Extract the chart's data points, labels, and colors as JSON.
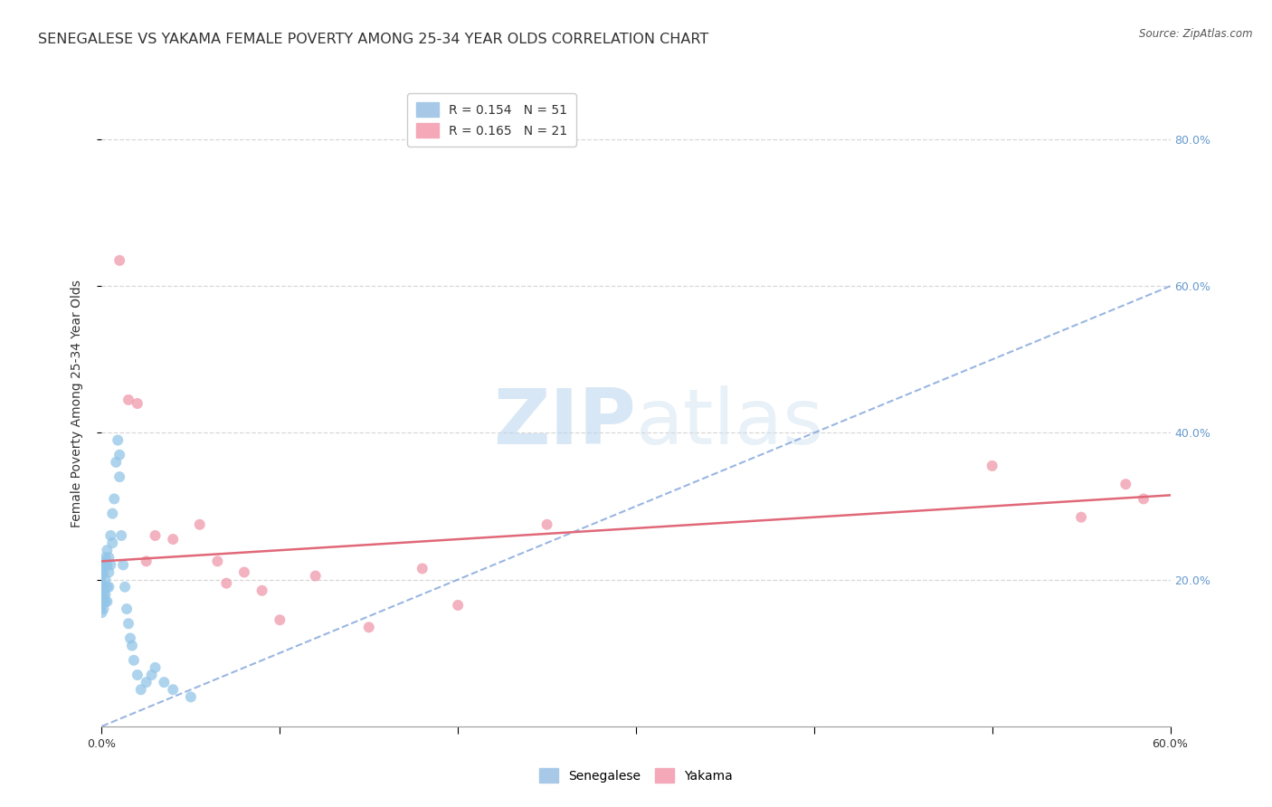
{
  "title": "SENEGALESE VS YAKAMA FEMALE POVERTY AMONG 25-34 YEAR OLDS CORRELATION CHART",
  "source": "Source: ZipAtlas.com",
  "ylabel": "Female Poverty Among 25-34 Year Olds",
  "xlim": [
    0.0,
    0.6
  ],
  "ylim": [
    0.0,
    0.88
  ],
  "watermark_zip": "ZIP",
  "watermark_atlas": "atlas",
  "senegalese_x": [
    0.0,
    0.0,
    0.0,
    0.0,
    0.0,
    0.0,
    0.0,
    0.0,
    0.001,
    0.001,
    0.001,
    0.001,
    0.001,
    0.001,
    0.002,
    0.002,
    0.002,
    0.002,
    0.002,
    0.003,
    0.003,
    0.003,
    0.003,
    0.004,
    0.004,
    0.004,
    0.005,
    0.005,
    0.006,
    0.006,
    0.007,
    0.008,
    0.009,
    0.01,
    0.01,
    0.011,
    0.012,
    0.013,
    0.014,
    0.015,
    0.016,
    0.017,
    0.018,
    0.02,
    0.022,
    0.025,
    0.028,
    0.03,
    0.035,
    0.04,
    0.05
  ],
  "senegalese_y": [
    0.225,
    0.215,
    0.205,
    0.195,
    0.185,
    0.175,
    0.165,
    0.155,
    0.22,
    0.21,
    0.19,
    0.18,
    0.17,
    0.16,
    0.23,
    0.22,
    0.2,
    0.18,
    0.17,
    0.24,
    0.22,
    0.19,
    0.17,
    0.23,
    0.21,
    0.19,
    0.26,
    0.22,
    0.29,
    0.25,
    0.31,
    0.36,
    0.39,
    0.37,
    0.34,
    0.26,
    0.22,
    0.19,
    0.16,
    0.14,
    0.12,
    0.11,
    0.09,
    0.07,
    0.05,
    0.06,
    0.07,
    0.08,
    0.06,
    0.05,
    0.04
  ],
  "yakama_x": [
    0.01,
    0.015,
    0.02,
    0.025,
    0.03,
    0.04,
    0.055,
    0.065,
    0.07,
    0.08,
    0.09,
    0.1,
    0.12,
    0.15,
    0.18,
    0.2,
    0.25,
    0.5,
    0.55,
    0.575,
    0.585
  ],
  "yakama_y": [
    0.635,
    0.445,
    0.44,
    0.225,
    0.26,
    0.255,
    0.275,
    0.225,
    0.195,
    0.21,
    0.185,
    0.145,
    0.205,
    0.135,
    0.215,
    0.165,
    0.275,
    0.355,
    0.285,
    0.33,
    0.31
  ],
  "blue_line_x": [
    0.0,
    0.6
  ],
  "blue_line_y": [
    0.0,
    0.6
  ],
  "pink_line_x": [
    0.0,
    0.6
  ],
  "pink_line_y": [
    0.225,
    0.315
  ],
  "dot_size": 75,
  "senegalese_color": "#92c5e8",
  "yakama_color": "#f099aa",
  "grid_color": "#d8d8d8",
  "background_color": "#ffffff",
  "title_fontsize": 11.5,
  "axis_label_fontsize": 10,
  "tick_fontsize": 9,
  "legend_fontsize": 10,
  "right_tick_color": "#6699cc"
}
